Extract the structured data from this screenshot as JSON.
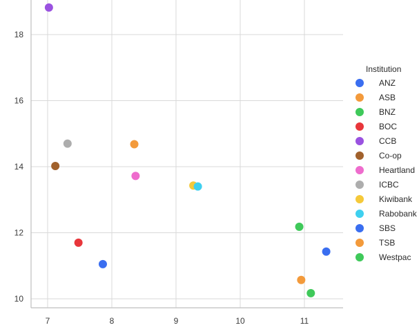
{
  "chart_data": {
    "type": "scatter",
    "title": "",
    "xlabel": "",
    "ylabel": "",
    "xlim": [
      6.75,
      11.6
    ],
    "ylim": [
      9.7,
      19.0
    ],
    "x_ticks": [
      "7",
      "8",
      "9",
      "10",
      "11"
    ],
    "y_ticks": [
      "10",
      "12",
      "14",
      "16",
      "18"
    ],
    "grid": true,
    "legend": {
      "title": "Institution",
      "placement": "right"
    },
    "series": [
      {
        "name": "ANZ",
        "color": "#3a6ef0",
        "x": [],
        "y": []
      },
      {
        "name": "ASB",
        "color": "#f39a3b",
        "x": [
          8.35
        ],
        "y": [
          14.68
        ]
      },
      {
        "name": "BNZ",
        "color": "#3fc95a",
        "x": [
          10.92
        ],
        "y": [
          12.18
        ]
      },
      {
        "name": "BOC",
        "color": "#e8363b",
        "x": [
          7.48
        ],
        "y": [
          11.7
        ]
      },
      {
        "name": "CCB",
        "color": "#9a52e0",
        "x": [
          7.02
        ],
        "y": [
          18.82
        ]
      },
      {
        "name": "Co-op",
        "color": "#a1612c",
        "x": [
          7.12
        ],
        "y": [
          14.02
        ]
      },
      {
        "name": "Heartland",
        "color": "#ee6ccd",
        "x": [
          8.37
        ],
        "y": [
          13.72
        ]
      },
      {
        "name": "ICBC",
        "color": "#adadad",
        "x": [
          7.31
        ],
        "y": [
          14.7
        ]
      },
      {
        "name": "Kiwibank",
        "color": "#f5c93a",
        "x": [
          9.27
        ],
        "y": [
          13.43
        ]
      },
      {
        "name": "Rabobank",
        "color": "#3fd0ef",
        "x": [
          9.34
        ],
        "y": [
          13.4
        ]
      },
      {
        "name": "SBS",
        "color": "#3a6ef0",
        "x": [
          7.86,
          11.34
        ],
        "y": [
          11.05,
          11.43
        ]
      },
      {
        "name": "TSB",
        "color": "#f39a3b",
        "x": [
          10.95
        ],
        "y": [
          10.57
        ]
      },
      {
        "name": "Westpac",
        "color": "#3fc95a",
        "x": [
          11.1
        ],
        "y": [
          10.17
        ]
      }
    ]
  }
}
